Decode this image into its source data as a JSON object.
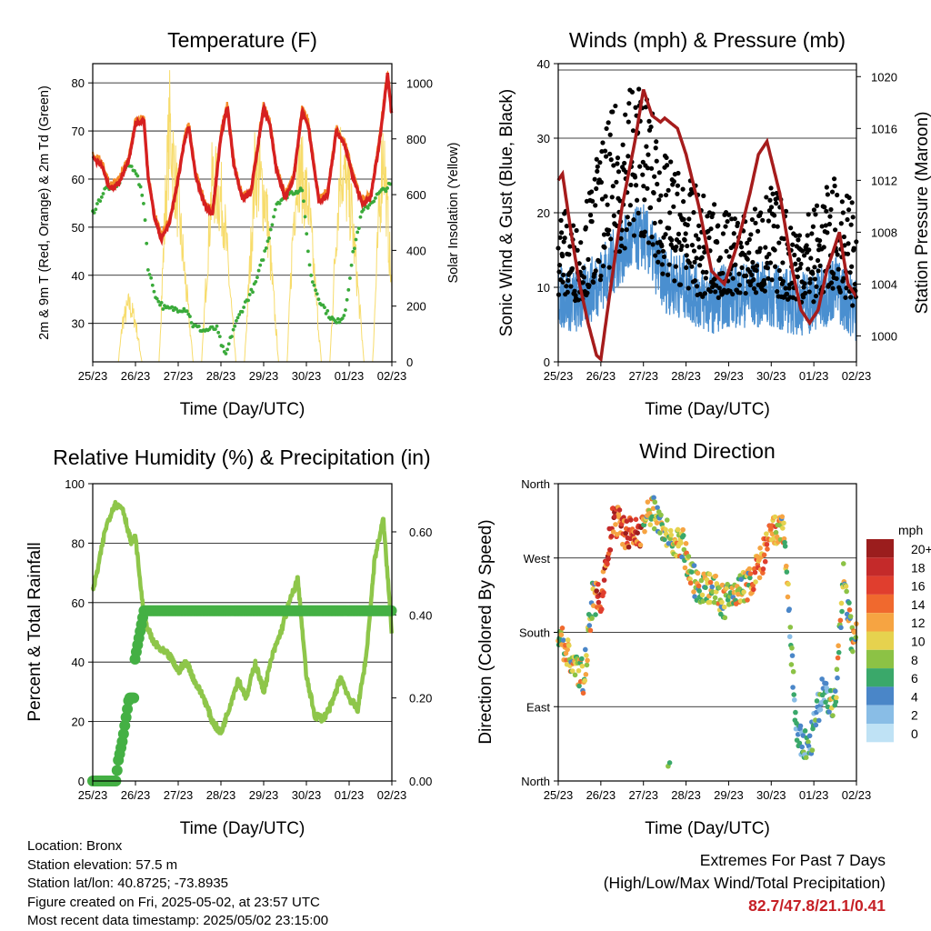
{
  "colors": {
    "temp2m": "#d62020",
    "temp9m": "#f58a28",
    "dewpoint": "#3aaa3a",
    "solar": "#f7dc6c",
    "gust": "#000000",
    "wind": "#4a8fd0",
    "pressure": "#a61c1c",
    "rh": "#8ec64a",
    "precip": "#44b044",
    "frame": "#000000",
    "grid": "#000000",
    "extremes": "#c62026"
  },
  "x_ticks": [
    "25/23",
    "26/23",
    "27/23",
    "28/23",
    "29/23",
    "30/23",
    "01/23",
    "02/23"
  ],
  "x_label": "Time (Day/UTC)",
  "chart_data": [
    {
      "type": "line",
      "title": "Temperature (F)",
      "xlabel": "Time (Day/UTC)",
      "ylabel": "2m & 9m T (Red, Orange) & 2m Td (Green)",
      "y2label": "Solar Insolation (Yellow)",
      "ylim": [
        22,
        84
      ],
      "y2lim": [
        0,
        1070
      ],
      "yticks": [
        30,
        40,
        50,
        60,
        70,
        80
      ],
      "y2ticks": [
        0,
        200,
        400,
        600,
        800,
        1000
      ],
      "x_unit": "days since 25/23",
      "series": [
        {
          "name": "2m T",
          "x": [
            0,
            0.2,
            0.4,
            0.6,
            0.85,
            1.0,
            1.2,
            1.3,
            1.45,
            1.6,
            1.8,
            2.0,
            2.15,
            2.25,
            2.4,
            2.6,
            2.8,
            3.0,
            3.15,
            3.3,
            3.5,
            3.7,
            3.85,
            4.0,
            4.15,
            4.3,
            4.5,
            4.7,
            4.9,
            5.05,
            5.2,
            5.3,
            5.5,
            5.7,
            5.9,
            6.1,
            6.3,
            6.5,
            6.7,
            6.9,
            7.0
          ],
          "values": [
            64.5,
            63,
            58,
            59,
            64,
            71.5,
            72,
            60,
            52,
            47.5,
            51,
            60,
            68,
            71,
            61,
            55,
            52.5,
            69,
            75,
            63,
            56,
            57,
            66,
            75,
            71,
            62,
            56,
            60,
            74,
            71,
            61,
            55,
            57,
            70,
            67,
            60,
            55,
            56,
            67,
            82,
            73
          ]
        },
        {
          "name": "Td",
          "x": [
            0,
            0.3,
            0.6,
            0.8,
            1.0,
            1.2,
            1.3,
            1.5,
            1.7,
            2.0,
            2.2,
            2.35,
            2.6,
            2.9,
            3.1,
            3.3,
            3.5,
            3.8,
            4.1,
            4.3,
            4.6,
            4.9,
            5.1,
            5.3,
            5.5,
            5.7,
            5.9,
            6.1,
            6.3,
            6.5,
            6.7,
            7.0
          ],
          "values": [
            53,
            58,
            59,
            63,
            62,
            55,
            41,
            35,
            33,
            33,
            33,
            29.5,
            28.5,
            29,
            23,
            29,
            33,
            38,
            47,
            55,
            57,
            58,
            40,
            35,
            32,
            30,
            32,
            45,
            53,
            55,
            57,
            59
          ]
        },
        {
          "name": "Solar",
          "x": [
            0.6,
            0.7,
            0.85,
            1.0,
            1.15,
            1.35,
            1.55,
            1.7,
            1.8,
            2.05,
            2.35,
            2.55,
            2.7,
            2.8,
            3.05,
            3.35,
            3.55,
            3.7,
            3.8,
            4.05,
            4.35,
            4.55,
            4.7,
            4.8,
            5.05,
            5.35,
            5.55,
            5.7,
            5.8,
            6.05,
            6.35,
            6.55,
            6.7,
            6.8,
            7.0
          ],
          "values": [
            0,
            180,
            260,
            180,
            0,
            0,
            0,
            700,
            1060,
            600,
            0,
            0,
            520,
            820,
            700,
            0,
            0,
            500,
            880,
            720,
            0,
            0,
            650,
            900,
            700,
            0,
            0,
            580,
            900,
            680,
            0,
            0,
            650,
            980,
            300
          ]
        }
      ]
    },
    {
      "type": "scatter",
      "title": "Winds (mph) & Pressure (mb)",
      "xlabel": "Time (Day/UTC)",
      "ylabel": "Sonic Wind & Gust (Blue, Black)",
      "y2label": "Station Pressure (Maroon)",
      "ylim": [
        0,
        40
      ],
      "y2lim": [
        998,
        1021
      ],
      "yticks": [
        0,
        10,
        20,
        30,
        40
      ],
      "y2ticks": [
        1000,
        1004,
        1008,
        1012,
        1016,
        1020
      ],
      "x_unit": "days since 25/23",
      "series": [
        {
          "name": "Gust max",
          "x": [
            0,
            0.5,
            1.0,
            1.5,
            1.8,
            2.0,
            2.5,
            3.0,
            3.5,
            4.0,
            4.5,
            5.0,
            5.5,
            6.0,
            6.5,
            7.0
          ],
          "values": [
            22,
            18,
            30,
            37,
            39,
            38,
            28,
            25,
            22,
            20,
            20,
            24,
            20,
            21,
            25,
            22
          ]
        },
        {
          "name": "Wind",
          "x": [
            0,
            0.5,
            1.0,
            1.5,
            2.0,
            2.5,
            3.0,
            3.5,
            4.0,
            4.5,
            5.0,
            5.5,
            6.0,
            6.5,
            7.0
          ],
          "values": [
            9,
            8,
            11,
            15,
            17,
            11,
            10,
            8,
            9,
            9,
            9,
            8,
            8,
            10,
            7
          ]
        },
        {
          "name": "Pressure",
          "x": [
            0,
            0.1,
            0.3,
            0.5,
            0.7,
            0.9,
            1.0,
            1.2,
            1.5,
            1.8,
            2.0,
            2.2,
            2.4,
            2.5,
            2.8,
            3.0,
            3.3,
            3.6,
            3.9,
            4.2,
            4.5,
            4.7,
            4.9,
            5.2,
            5.5,
            5.7,
            5.9,
            6.1,
            6.3,
            6.6,
            6.8,
            7.0
          ],
          "values": [
            1012,
            1012.5,
            1008,
            1004,
            1001,
            998.5,
            998.2,
            1003,
            1010,
            1015,
            1019,
            1017,
            1016.5,
            1016.8,
            1016,
            1014,
            1010,
            1005,
            1004,
            1007,
            1011,
            1014,
            1015,
            1011,
            1005,
            1002,
            1001,
            1002,
            1005,
            1008,
            1004,
            1003
          ]
        }
      ]
    },
    {
      "type": "line",
      "title": "Relative Humidity (%) & Precipitation (in)",
      "xlabel": "Time (Day/UTC)",
      "ylabel": "Percent & Total Rainfall",
      "ylim": [
        0,
        100
      ],
      "y2lim": [
        0,
        0.716
      ],
      "yticks": [
        0,
        20,
        40,
        60,
        80,
        100
      ],
      "y2ticks": [
        "0.00",
        "0.20",
        "0.40",
        "0.60"
      ],
      "x_unit": "days since 25/23",
      "series": [
        {
          "name": "RH",
          "x": [
            0,
            0.1,
            0.3,
            0.5,
            0.7,
            0.9,
            1.0,
            1.2,
            1.4,
            1.6,
            1.8,
            2.0,
            2.2,
            2.4,
            2.6,
            2.8,
            3.0,
            3.2,
            3.4,
            3.6,
            3.8,
            4.0,
            4.2,
            4.4,
            4.6,
            4.8,
            5.0,
            5.2,
            5.4,
            5.6,
            5.8,
            6.0,
            6.2,
            6.4,
            6.6,
            6.8,
            7.0
          ],
          "values": [
            64,
            70,
            85,
            93,
            92,
            80,
            82,
            55,
            47,
            44,
            42,
            37,
            40,
            33,
            28,
            20,
            16,
            25,
            34,
            28,
            40,
            30,
            42,
            50,
            60,
            68,
            35,
            22,
            21,
            26,
            35,
            28,
            24,
            42,
            75,
            88,
            50
          ]
        },
        {
          "name": "Precip",
          "x": [
            0,
            0.5,
            0.6,
            0.7,
            0.85,
            1.0,
            1.2,
            2.0,
            3.0,
            4.0,
            5.0,
            6.0,
            7.0
          ],
          "values": [
            0,
            0,
            0.05,
            0.1,
            0.2,
            0.3,
            0.41,
            0.41,
            0.41,
            0.41,
            0.41,
            0.41,
            0.41
          ]
        }
      ]
    },
    {
      "type": "scatter",
      "title": "Wind Direction",
      "xlabel": "Time (Day/UTC)",
      "ylabel": "Direction (Colored By Speed)",
      "yticks": [
        "North",
        "East",
        "South",
        "West",
        "North"
      ],
      "ylim": [
        0,
        360
      ],
      "colorbar": {
        "unit": "mph",
        "labels": [
          "20+",
          "18",
          "16",
          "14",
          "12",
          "10",
          "8",
          "6",
          "4",
          "2",
          "0"
        ],
        "colors": [
          "#9b1d1d",
          "#c42a2a",
          "#e03e2e",
          "#f0692e",
          "#f6a442",
          "#e6d24e",
          "#8cc245",
          "#3aa86a",
          "#4a86c8",
          "#89bde6",
          "#bfe2f5"
        ]
      },
      "x_unit": "days since 25/23",
      "series": [
        {
          "name": "Direction",
          "x": [
            0,
            0.3,
            0.6,
            0.8,
            1.0,
            1.3,
            1.6,
            1.9,
            2.2,
            2.5,
            2.7,
            2.9,
            3.1,
            3.3,
            3.6,
            3.9,
            4.2,
            4.5,
            4.8,
            5.0,
            5.3,
            5.6,
            5.9,
            6.2,
            6.5,
            6.7,
            6.9,
            7.0
          ],
          "values": [
            180,
            145,
            125,
            220,
            220,
            320,
            300,
            300,
            330,
            305,
            285,
            290,
            250,
            235,
            235,
            215,
            230,
            240,
            270,
            300,
            305,
            50,
            40,
            110,
            90,
            250,
            170,
            175
          ]
        }
      ]
    }
  ],
  "info": {
    "location": "Location: Bronx",
    "elevation": "Station elevation: 57.5 m",
    "latlon": "Station lat/lon: 40.8725; -73.8935",
    "created": "Figure created on Fri, 2025-05-02, at 23:57 UTC",
    "recent": "Most recent data timestamp: 2025/05/02 23:15:00"
  },
  "extremes": {
    "title": "Extremes For Past 7 Days",
    "subtitle": "(High/Low/Max Wind/Total Precipitation)",
    "values": "82.7/47.8/21.1/0.41"
  }
}
